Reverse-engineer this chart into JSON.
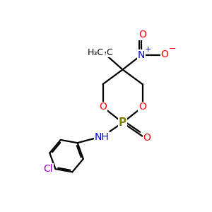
{
  "background_color": "#ffffff",
  "fig_size": [
    3.0,
    3.0
  ],
  "dpi": 100,
  "bond_color": "#000000",
  "bond_width": 1.6,
  "colors": {
    "C": "#000000",
    "O": "#ff0000",
    "N": "#0000cc",
    "P": "#808000",
    "Cl": "#9900cc",
    "H": "#000000"
  },
  "font_size": 10,
  "small_font_size": 7
}
